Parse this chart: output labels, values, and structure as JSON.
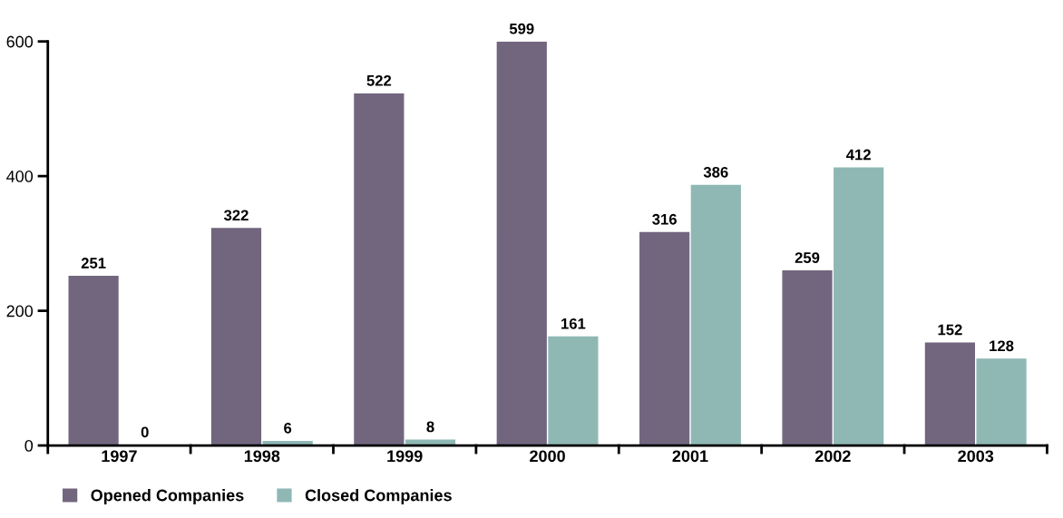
{
  "chart_data": {
    "type": "bar",
    "categories": [
      "1997",
      "1998",
      "1999",
      "2000",
      "2001",
      "2002",
      "2003"
    ],
    "series": [
      {
        "name": "Opened Companies",
        "color": "#72667f",
        "values": [
          251,
          322,
          522,
          599,
          316,
          259,
          152
        ]
      },
      {
        "name": "Closed Companies",
        "color": "#8fb8b5",
        "values": [
          0,
          6,
          8,
          161,
          386,
          412,
          128
        ]
      }
    ],
    "ylim": [
      0,
      600
    ],
    "yticks": [
      0,
      200,
      400,
      600
    ],
    "grid": false,
    "legend": "bottom left",
    "data_labels": true
  }
}
